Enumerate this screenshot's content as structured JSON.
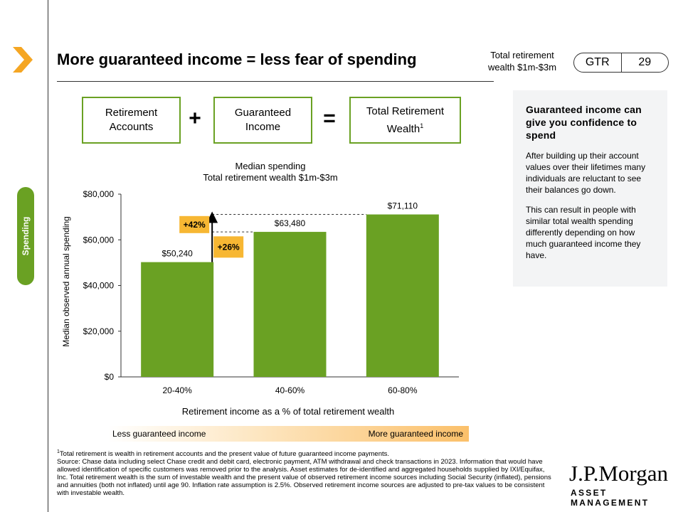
{
  "header": {
    "title": "More guaranteed income = less fear of spending",
    "subtitle": "Total retirement wealth $1m-$3m",
    "badge_label": "GTR",
    "page_number": "29"
  },
  "sidebar": {
    "tab_label": "Spending",
    "icon": "chevron-right-icon"
  },
  "equation": {
    "box1": "Retirement Accounts",
    "op1": "+",
    "box2": "Guaranteed Income",
    "op2": "=",
    "box3": "Total Retirement Wealth",
    "box3_superscript": "1"
  },
  "chart_data": {
    "type": "bar",
    "title": "Median spending",
    "subtitle": "Total retirement wealth $1m-$3m",
    "xlabel": "Retirement income as a % of total retirement wealth",
    "ylabel": "Median observed annual spending",
    "categories": [
      "20-40%",
      "40-60%",
      "60-80%"
    ],
    "values": [
      50240,
      63480,
      71110
    ],
    "value_labels": [
      "$50,240",
      "$63,480",
      "$71,110"
    ],
    "ylim": [
      0,
      80000
    ],
    "yticks": [
      0,
      20000,
      40000,
      60000,
      80000
    ],
    "ytick_labels": [
      "$0",
      "$20,000",
      "$40,000",
      "$60,000",
      "$80,000"
    ],
    "annotations": [
      "+42%",
      "+26%"
    ],
    "grid": false,
    "bar_color": "#6aa123",
    "annotation_color": "#f7b733"
  },
  "gradient_scale": {
    "left": "Less guaranteed income",
    "right": "More guaranteed income"
  },
  "panel": {
    "heading": "Guaranteed income can give you confidence to spend",
    "p1": "After building up their account values over their lifetimes many individuals are reluctant to see their balances go down.",
    "p2": "This can result in people with similar total wealth spending differently depending on how much guaranteed income they have."
  },
  "footnotes": {
    "line1_marker": "1",
    "line1": "Total retirement is wealth in retirement accounts and the present value of future guaranteed income payments.",
    "line2": "Source: Chase data including select Chase credit and debit card, electronic payment, ATM withdrawal and check transactions in 2023. Information that would have allowed identification of specific customers was removed prior to the analysis. Asset estimates for de-identified and aggregated households supplied by IXI/Equifax, Inc. Total retirement wealth is the sum of investable wealth and the present value of observed retirement income sources including Social Security (inflated), pensions and annuities (both not inflated) until age 90. Inflation rate assumption is 2.5%. Observed retirement income sources are adjusted to pre-tax values to be consistent with investable wealth."
  },
  "logo": {
    "name": "J.P.Morgan",
    "tagline": "ASSET MANAGEMENT"
  },
  "colors": {
    "accent_green": "#6aa123",
    "accent_orange": "#f7b733",
    "chevron": "#f5a623"
  }
}
